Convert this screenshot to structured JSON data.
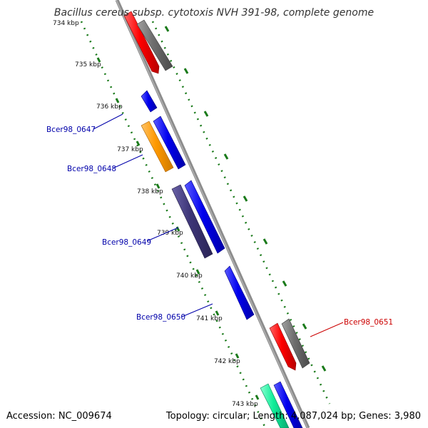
{
  "title": "Bacillus cereus subsp. cytotoxis NVH 391-98, complete genome",
  "accession_text": "Accession: NC_009674",
  "summary_text": "Topology: circular; Length: 4,087,024 bp; Genes: 3,980",
  "colors": {
    "backbone": "#8c8c8c",
    "tick_dots": "#1a7a1a",
    "label_blue": "#0000aa",
    "label_red": "#cc0000"
  },
  "ticks": [
    "734 kbp",
    "735 kbp",
    "736 kbp",
    "737 kbp",
    "738 kbp",
    "739 kbp",
    "740 kbp",
    "741 kbp",
    "742 kbp",
    "743 kbp"
  ],
  "gene_labels": [
    {
      "name": "Bcer98_0647",
      "color": "#0000aa"
    },
    {
      "name": "Bcer98_0648",
      "color": "#0000aa"
    },
    {
      "name": "Bcer98_0649",
      "color": "#0000aa"
    },
    {
      "name": "Bcer98_0650",
      "color": "#0000aa"
    },
    {
      "name": "Bcer98_0651",
      "color": "#cc0000"
    }
  ],
  "features": [
    {
      "id": "red-cds-top",
      "color": "#ff0000"
    },
    {
      "id": "grey-cds-top",
      "color": "#6e6e6e"
    },
    {
      "id": "blue-cds-small",
      "color": "#0000ee"
    },
    {
      "id": "orange-cds",
      "color": "#ff9900"
    },
    {
      "id": "blue-cds-a",
      "color": "#0000ee"
    },
    {
      "id": "purple-cds",
      "color": "#3d3577"
    },
    {
      "id": "blue-cds-b",
      "color": "#0000ee"
    },
    {
      "id": "blue-cds-c",
      "color": "#0000ee"
    },
    {
      "id": "red-cds-bottom",
      "color": "#ff0000"
    },
    {
      "id": "grey-cds-bottom",
      "color": "#6e6e6e"
    },
    {
      "id": "teal-cds",
      "color": "#11ee99"
    },
    {
      "id": "blue-cds-d",
      "color": "#0000ee"
    }
  ]
}
